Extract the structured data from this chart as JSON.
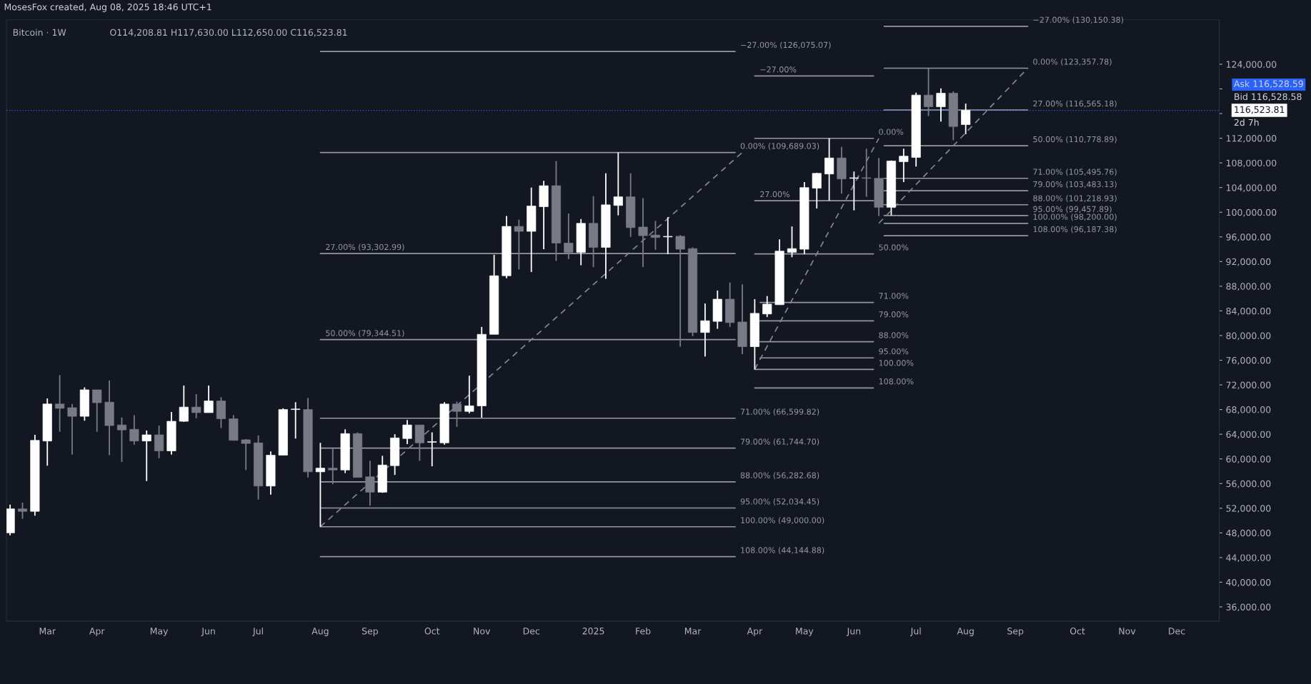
{
  "chart_data": {
    "type": "candlestick",
    "title": "Bitcoin · 1W",
    "subtitle": "O114,208.81 H117,630.00 L112,650.00 C116,523.81",
    "xlim": [
      "2024-02-10",
      "2025-12-25"
    ],
    "ylim": [
      33700,
      131200
    ],
    "xticks": [
      {
        "value": "2024-03-04",
        "label": "Mar"
      },
      {
        "value": "2024-04-01",
        "label": "Apr"
      },
      {
        "value": "2024-05-06",
        "label": "May"
      },
      {
        "value": "2024-06-03",
        "label": "Jun"
      },
      {
        "value": "2024-07-01",
        "label": "Jul"
      },
      {
        "value": "2024-08-05",
        "label": "Aug"
      },
      {
        "value": "2024-09-02",
        "label": "Sep"
      },
      {
        "value": "2024-10-07",
        "label": "Oct"
      },
      {
        "value": "2024-11-04",
        "label": "Nov"
      },
      {
        "value": "2024-12-02",
        "label": "Dec"
      },
      {
        "value": "2025-01-06",
        "label": "2025"
      },
      {
        "value": "2025-02-03",
        "label": "Feb"
      },
      {
        "value": "2025-03-03",
        "label": "Mar"
      },
      {
        "value": "2025-04-07",
        "label": "Apr"
      },
      {
        "value": "2025-05-05",
        "label": "May"
      },
      {
        "value": "2025-06-02",
        "label": "Jun"
      },
      {
        "value": "2025-07-07",
        "label": "Jul"
      },
      {
        "value": "2025-08-04",
        "label": "Aug"
      },
      {
        "value": "2025-09-01",
        "label": "Sep"
      },
      {
        "value": "2025-10-06",
        "label": "Oct"
      },
      {
        "value": "2025-11-03",
        "label": "Nov"
      },
      {
        "value": "2025-12-01",
        "label": "Dec"
      }
    ],
    "yticks": [
      {
        "value": 36000,
        "label": "36,000.00"
      },
      {
        "value": 40000,
        "label": "40,000.00"
      },
      {
        "value": 44000,
        "label": "44,000.00"
      },
      {
        "value": 48000,
        "label": "48,000.00"
      },
      {
        "value": 52000,
        "label": "52,000.00"
      },
      {
        "value": 56000,
        "label": "56,000.00"
      },
      {
        "value": 60000,
        "label": "60,000.00"
      },
      {
        "value": 64000,
        "label": "64,000.00"
      },
      {
        "value": 68000,
        "label": "68,000.00"
      },
      {
        "value": 72000,
        "label": "72,000.00"
      },
      {
        "value": 76000,
        "label": "76,000.00"
      },
      {
        "value": 80000,
        "label": "80,000.00"
      },
      {
        "value": 84000,
        "label": "84,000.00"
      },
      {
        "value": 88000,
        "label": "88,000.00"
      },
      {
        "value": 92000,
        "label": "92,000.00"
      },
      {
        "value": 96000,
        "label": "96,000.00"
      },
      {
        "value": 100000,
        "label": "100,000.00"
      },
      {
        "value": 104000,
        "label": "104,000.00"
      },
      {
        "value": 108000,
        "label": "108,000.00"
      },
      {
        "value": 112000,
        "label": "112,000.00"
      },
      {
        "value": 116000,
        "label": null
      },
      {
        "value": 120000,
        "label": null
      },
      {
        "value": 124000,
        "label": "124,000.00"
      }
    ],
    "ref_lines": [
      {
        "axis": "y",
        "value": 116523.81,
        "label": "116,523.81",
        "color": "#2962ff",
        "line_style": "dotted"
      }
    ],
    "series": [
      {
        "type": "line",
        "color": "#9598a1",
        "x": [
          "2024-08-05",
          "2025-03-27"
        ],
        "values": [
          126075.07,
          126075.07
        ]
      },
      {
        "type": "line",
        "color": "#9598a1",
        "x": [
          "2024-08-05",
          "2025-03-27"
        ],
        "values": [
          109689.03,
          109689.03
        ]
      },
      {
        "type": "line",
        "color": "#9598a1",
        "x": [
          "2024-08-05",
          "2025-03-27"
        ],
        "values": [
          93302.99,
          93302.99
        ]
      },
      {
        "type": "line",
        "color": "#9598a1",
        "x": [
          "2024-08-05",
          "2025-03-27"
        ],
        "values": [
          79344.51,
          79344.51
        ]
      },
      {
        "type": "line",
        "color": "#9598a1",
        "x": [
          "2024-08-05",
          "2025-03-27"
        ],
        "values": [
          66599.82,
          66599.82
        ]
      },
      {
        "type": "line",
        "color": "#9598a1",
        "x": [
          "2024-08-05",
          "2025-03-27"
        ],
        "values": [
          61744.7,
          61744.7
        ]
      },
      {
        "type": "line",
        "color": "#9598a1",
        "x": [
          "2024-08-05",
          "2025-03-27"
        ],
        "values": [
          56282.68,
          56282.68
        ]
      },
      {
        "type": "line",
        "color": "#9598a1",
        "x": [
          "2024-08-05",
          "2025-03-27"
        ],
        "values": [
          52034.45,
          52034.45
        ]
      },
      {
        "type": "line",
        "color": "#9598a1",
        "x": [
          "2024-08-05",
          "2025-03-27"
        ],
        "values": [
          49000.0,
          49000.0
        ]
      },
      {
        "type": "line",
        "color": "#9598a1",
        "x": [
          "2024-08-05",
          "2025-03-27"
        ],
        "values": [
          44144.88,
          44144.88
        ]
      },
      {
        "type": "line",
        "color": "#9598a1",
        "x": [
          "2025-04-07",
          "2025-06-13"
        ],
        "values": [
          122097,
          122097
        ]
      },
      {
        "type": "line",
        "color": "#9598a1",
        "x": [
          "2025-04-07",
          "2025-06-13"
        ],
        "values": [
          111980,
          111980
        ]
      },
      {
        "type": "line",
        "color": "#9598a1",
        "x": [
          "2025-04-07",
          "2025-06-13"
        ],
        "values": [
          101863,
          101863
        ]
      },
      {
        "type": "line",
        "color": "#9598a1",
        "x": [
          "2025-04-07",
          "2025-06-13"
        ],
        "values": [
          93244,
          93244
        ]
      },
      {
        "type": "line",
        "color": "#9598a1",
        "x": [
          "2025-04-10",
          "2025-06-13"
        ],
        "values": [
          85376,
          85376
        ]
      },
      {
        "type": "line",
        "color": "#9598a1",
        "x": [
          "2025-04-10",
          "2025-06-13"
        ],
        "values": [
          82378,
          82378
        ]
      },
      {
        "type": "line",
        "color": "#9598a1",
        "x": [
          "2025-04-10",
          "2025-06-13"
        ],
        "values": [
          79006,
          79006
        ]
      },
      {
        "type": "line",
        "color": "#9598a1",
        "x": [
          "2025-04-10",
          "2025-06-13"
        ],
        "values": [
          76382,
          76382
        ]
      },
      {
        "type": "line",
        "color": "#9598a1",
        "x": [
          "2025-04-07",
          "2025-06-13"
        ],
        "values": [
          74508,
          74508
        ]
      },
      {
        "type": "line",
        "color": "#9598a1",
        "x": [
          "2025-04-07",
          "2025-06-13"
        ],
        "values": [
          71510,
          71510
        ]
      },
      {
        "type": "line",
        "color": "#9598a1",
        "x": [
          "2025-06-19",
          "2025-09-08"
        ],
        "values": [
          130150.38,
          130150.38
        ]
      },
      {
        "type": "line",
        "color": "#9598a1",
        "x": [
          "2025-06-19",
          "2025-09-08"
        ],
        "values": [
          123357.78,
          123357.78
        ]
      },
      {
        "type": "line",
        "color": "#9598a1",
        "x": [
          "2025-06-19",
          "2025-09-08"
        ],
        "values": [
          116565.18,
          116565.18
        ]
      },
      {
        "type": "line",
        "color": "#9598a1",
        "x": [
          "2025-06-19",
          "2025-09-08"
        ],
        "values": [
          110778.89,
          110778.89
        ]
      },
      {
        "type": "line",
        "color": "#9598a1",
        "x": [
          "2025-06-19",
          "2025-09-08"
        ],
        "values": [
          105495.76,
          105495.76
        ]
      },
      {
        "type": "line",
        "color": "#9598a1",
        "x": [
          "2025-06-19",
          "2025-09-08"
        ],
        "values": [
          103483.13,
          103483.13
        ]
      },
      {
        "type": "line",
        "color": "#9598a1",
        "x": [
          "2025-06-19",
          "2025-09-08"
        ],
        "values": [
          101218.93,
          101218.93
        ]
      },
      {
        "type": "line",
        "color": "#9598a1",
        "x": [
          "2025-06-19",
          "2025-09-08"
        ],
        "values": [
          99457.89,
          99457.89
        ]
      },
      {
        "type": "line",
        "color": "#9598a1",
        "x": [
          "2025-06-19",
          "2025-09-08"
        ],
        "values": [
          98200.0,
          98200.0
        ]
      },
      {
        "type": "line",
        "color": "#9598a1",
        "x": [
          "2025-06-19",
          "2025-09-08"
        ],
        "values": [
          96187.38,
          96187.38
        ]
      },
      {
        "type": "line",
        "color": "#868993",
        "line_style": "dashed",
        "x": [
          "2024-08-05",
          "2025-03-31"
        ],
        "values": [
          49000.0,
          109689.03
        ]
      },
      {
        "type": "line",
        "color": "#868993",
        "line_style": "dashed",
        "x": [
          "2025-04-07",
          "2025-06-16"
        ],
        "values": [
          74508,
          111980
        ]
      },
      {
        "type": "line",
        "color": "#868993",
        "line_style": "dashed",
        "x": [
          "2025-06-16",
          "2025-09-08"
        ],
        "values": [
          98200.0,
          123357.78
        ]
      },
      {
        "type": "candlestick",
        "x": [
          "2024-02-12",
          "2024-02-19",
          "2024-02-26",
          "2024-03-04",
          "2024-03-11",
          "2024-03-18",
          "2024-03-25",
          "2024-04-01",
          "2024-04-08",
          "2024-04-15",
          "2024-04-22",
          "2024-04-29",
          "2024-05-06",
          "2024-05-13",
          "2024-05-20",
          "2024-05-27",
          "2024-06-03",
          "2024-06-10",
          "2024-06-17",
          "2024-06-24",
          "2024-07-01",
          "2024-07-08",
          "2024-07-15",
          "2024-07-22",
          "2024-07-29",
          "2024-08-05",
          "2024-08-12",
          "2024-08-19",
          "2024-08-26",
          "2024-09-02",
          "2024-09-09",
          "2024-09-16",
          "2024-09-23",
          "2024-09-30",
          "2024-10-07",
          "2024-10-14",
          "2024-10-21",
          "2024-10-28",
          "2024-11-04",
          "2024-11-11",
          "2024-11-18",
          "2024-11-25",
          "2024-12-02",
          "2024-12-09",
          "2024-12-16",
          "2024-12-23",
          "2024-12-30",
          "2025-01-06",
          "2025-01-13",
          "2025-01-20",
          "2025-01-27",
          "2025-02-03",
          "2025-02-10",
          "2025-02-17",
          "2025-02-24",
          "2025-03-03",
          "2025-03-10",
          "2025-03-17",
          "2025-03-24",
          "2025-03-31",
          "2025-04-07",
          "2025-04-14",
          "2025-04-21",
          "2025-04-28",
          "2025-05-05",
          "2025-05-12",
          "2025-05-19",
          "2025-05-26",
          "2025-06-02",
          "2025-06-09",
          "2025-06-16",
          "2025-06-23",
          "2025-06-30",
          "2025-07-07",
          "2025-07-14",
          "2025-07-21",
          "2025-07-28",
          "2025-08-04"
        ],
        "ohlc": [
          [
            48000,
            52600,
            47600,
            51900
          ],
          [
            51900,
            52900,
            50300,
            51500
          ],
          [
            51500,
            63900,
            50800,
            63000
          ],
          [
            62900,
            69800,
            58900,
            68900
          ],
          [
            68900,
            73600,
            64400,
            68200
          ],
          [
            68300,
            68900,
            60700,
            66900
          ],
          [
            66900,
            71600,
            66200,
            71200
          ],
          [
            71200,
            71200,
            64400,
            69100
          ],
          [
            69200,
            72700,
            60600,
            65400
          ],
          [
            65500,
            66700,
            59500,
            64700
          ],
          [
            64800,
            67100,
            62300,
            62900
          ],
          [
            62900,
            64600,
            56400,
            63900
          ],
          [
            63900,
            65400,
            60100,
            61300
          ],
          [
            61300,
            67600,
            60700,
            66100
          ],
          [
            66100,
            71900,
            66000,
            68400
          ],
          [
            68400,
            70500,
            66600,
            67500
          ],
          [
            67500,
            71900,
            67500,
            69400
          ],
          [
            69400,
            70000,
            65000,
            66500
          ],
          [
            66500,
            67100,
            63000,
            63000
          ],
          [
            63100,
            63200,
            58200,
            62500
          ],
          [
            62600,
            63800,
            53400,
            55600
          ],
          [
            55600,
            61200,
            54200,
            60600
          ],
          [
            60600,
            68200,
            60600,
            68000
          ],
          [
            68000,
            69200,
            63300,
            68000
          ],
          [
            68000,
            69900,
            57000,
            57900
          ],
          [
            57900,
            62600,
            49000,
            58500
          ],
          [
            58500,
            61700,
            55900,
            58200
          ],
          [
            58200,
            64800,
            57700,
            64100
          ],
          [
            64100,
            64300,
            57000,
            57000
          ],
          [
            57100,
            59700,
            52400,
            54600
          ],
          [
            54600,
            60500,
            54500,
            59000
          ],
          [
            58900,
            64000,
            57400,
            63400
          ],
          [
            63300,
            66300,
            62400,
            65500
          ],
          [
            65500,
            65500,
            59700,
            62600
          ],
          [
            62700,
            64300,
            58800,
            62700
          ],
          [
            62600,
            69200,
            62300,
            68900
          ],
          [
            68900,
            69300,
            65200,
            67700
          ],
          [
            67700,
            73500,
            67400,
            68600
          ],
          [
            68600,
            81400,
            66700,
            80200
          ],
          [
            80200,
            93100,
            80200,
            89700
          ],
          [
            89700,
            99400,
            89300,
            97700
          ],
          [
            97700,
            98800,
            90700,
            96900
          ],
          [
            96900,
            104000,
            90300,
            101000
          ],
          [
            100900,
            105100,
            94000,
            104300
          ],
          [
            104300,
            108300,
            92100,
            95000
          ],
          [
            95000,
            99800,
            92400,
            93500
          ],
          [
            93500,
            98900,
            91400,
            98200
          ],
          [
            98200,
            102600,
            91100,
            94300
          ],
          [
            94300,
            106300,
            89200,
            101200
          ],
          [
            101100,
            109689.03,
            99500,
            102500
          ],
          [
            102500,
            106300,
            96000,
            97500
          ],
          [
            97600,
            102300,
            91100,
            96200
          ],
          [
            96300,
            98600,
            93900,
            95900
          ],
          [
            96000,
            99200,
            93200,
            96000
          ],
          [
            96100,
            96300,
            78200,
            94000
          ],
          [
            94100,
            94300,
            79900,
            80500
          ],
          [
            80500,
            85200,
            76600,
            82400
          ],
          [
            82300,
            87300,
            81100,
            85900
          ],
          [
            85900,
            88600,
            81400,
            82100
          ],
          [
            82200,
            88300,
            77000,
            78200
          ],
          [
            78200,
            85900,
            74508,
            83600
          ],
          [
            83500,
            86400,
            83000,
            85100
          ],
          [
            85000,
            95600,
            85000,
            93700
          ],
          [
            93500,
            97700,
            92700,
            94100
          ],
          [
            94000,
            104900,
            93200,
            104000
          ],
          [
            103900,
            106400,
            100600,
            106300
          ],
          [
            106200,
            111980,
            101900,
            108800
          ],
          [
            108800,
            110600,
            103000,
            105400
          ],
          [
            105500,
            106600,
            100300,
            105500
          ],
          [
            105500,
            110300,
            102500,
            105500
          ],
          [
            105500,
            108800,
            99400,
            100800
          ],
          [
            100800,
            108400,
            99500,
            108300
          ],
          [
            108200,
            110300,
            104900,
            109100
          ],
          [
            108900,
            119400,
            107400,
            119000
          ],
          [
            119000,
            123357.78,
            115600,
            117100
          ],
          [
            117100,
            120100,
            114700,
            119300
          ],
          [
            119300,
            119600,
            111700,
            113900
          ],
          [
            114208.81,
            117630.0,
            112650.0,
            116523.81
          ]
        ],
        "colors": [
          "#ffffff",
          "#787b86",
          "#ffffff",
          "#ffffff",
          "#787b86",
          "#787b86",
          "#ffffff",
          "#787b86",
          "#787b86",
          "#787b86",
          "#787b86",
          "#ffffff",
          "#787b86",
          "#ffffff",
          "#ffffff",
          "#787b86",
          "#ffffff",
          "#787b86",
          "#787b86",
          "#787b86",
          "#787b86",
          "#ffffff",
          "#ffffff",
          "#ffffff",
          "#787b86",
          "#ffffff",
          "#787b86",
          "#ffffff",
          "#787b86",
          "#787b86",
          "#ffffff",
          "#ffffff",
          "#ffffff",
          "#787b86",
          "#ffffff",
          "#ffffff",
          "#787b86",
          "#ffffff",
          "#ffffff",
          "#ffffff",
          "#ffffff",
          "#787b86",
          "#ffffff",
          "#ffffff",
          "#787b86",
          "#787b86",
          "#ffffff",
          "#787b86",
          "#ffffff",
          "#ffffff",
          "#787b86",
          "#787b86",
          "#787b86",
          "#ffffff",
          "#787b86",
          "#787b86",
          "#ffffff",
          "#ffffff",
          "#787b86",
          "#787b86",
          "#ffffff",
          "#ffffff",
          "#ffffff",
          "#ffffff",
          "#ffffff",
          "#ffffff",
          "#ffffff",
          "#787b86",
          "#ffffff",
          "#787b86",
          "#787b86",
          "#ffffff",
          "#ffffff",
          "#ffffff",
          "#787b86",
          "#ffffff",
          "#787b86",
          "#ffffff"
        ]
      }
    ],
    "annotations": [
      "MosesFox created, Aug 08, 2025 18:46 UTC+1",
      "Ask 116,528.59",
      "Bid 116,528.58",
      "2d 7h",
      {
        "text": "−27.00% (126,075.07)",
        "x": "2025-03-27",
        "y": 126075.07
      },
      {
        "text": "0.00% (109,689.03)",
        "x": "2025-03-27",
        "y": 109689.03
      },
      {
        "text": "27.00% (93,302.99)",
        "x": "2024-08-05",
        "y": 93302.99
      },
      {
        "text": "50.00% (79,344.51)",
        "x": "2024-08-05",
        "y": 79344.51
      },
      {
        "text": "71.00% (66,599.82)",
        "x": "2025-03-27",
        "y": 66599.82
      },
      {
        "text": "79.00% (61,744.70)",
        "x": "2025-03-27",
        "y": 61744.7
      },
      {
        "text": "88.00% (56,282.68)",
        "x": "2025-03-27",
        "y": 56282.68
      },
      {
        "text": "95.00% (52,034.45)",
        "x": "2025-03-27",
        "y": 52034.45
      },
      {
        "text": "100.00% (49,000.00)",
        "x": "2025-03-27",
        "y": 49000.0
      },
      {
        "text": "108.00% (44,144.88)",
        "x": "2025-03-27",
        "y": 44144.88
      },
      {
        "text": "−27.00%",
        "x": "2025-04-07",
        "y": 122097
      },
      {
        "text": "0.00%",
        "x": "2025-06-13",
        "y": 111980
      },
      {
        "text": "27.00%",
        "x": "2025-04-07",
        "y": 101863
      },
      {
        "text": "50.00%",
        "x": "2025-06-13",
        "y": 93244
      },
      {
        "text": "71.00%",
        "x": "2025-06-13",
        "y": 85376
      },
      {
        "text": "79.00%",
        "x": "2025-06-13",
        "y": 82378
      },
      {
        "text": "88.00%",
        "x": "2025-06-13",
        "y": 79006
      },
      {
        "text": "95.00%",
        "x": "2025-06-13",
        "y": 76382
      },
      {
        "text": "100.00%",
        "x": "2025-06-13",
        "y": 74508
      },
      {
        "text": "108.00%",
        "x": "2025-06-13",
        "y": 71510
      },
      {
        "text": "−27.00% (130,150.38)",
        "x": "2025-09-08",
        "y": 130150.38
      },
      {
        "text": "0.00% (123,357.78)",
        "x": "2025-09-08",
        "y": 123357.78
      },
      {
        "text": "27.00% (116,565.18)",
        "x": "2025-09-08",
        "y": 116565.18
      },
      {
        "text": "50.00% (110,778.89)",
        "x": "2025-09-08",
        "y": 110778.89
      },
      {
        "text": "71.00% (105,495.76)",
        "x": "2025-09-08",
        "y": 105495.76
      },
      {
        "text": "79.00% (103,483.13)",
        "x": "2025-09-08",
        "y": 103483.13
      },
      {
        "text": "88.00% (101,218.93)",
        "x": "2025-09-08",
        "y": 101218.93
      },
      {
        "text": "95.00% (99,457.89)",
        "x": "2025-09-08",
        "y": 99457.89
      },
      {
        "text": "100.00% (98,200.00)",
        "x": "2025-09-08",
        "y": 98200.0
      },
      {
        "text": "108.00% (96,187.38)",
        "x": "2025-09-08",
        "y": 96187.38
      }
    ]
  }
}
